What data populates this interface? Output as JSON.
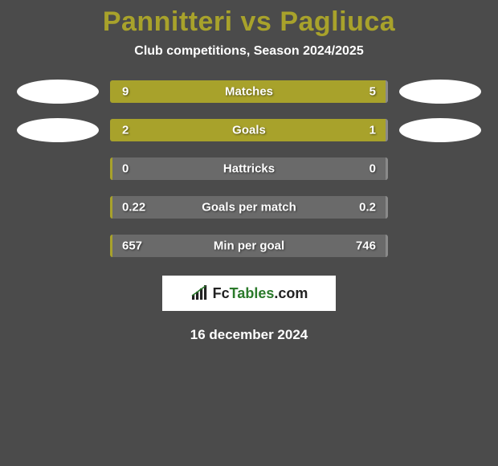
{
  "page": {
    "background_color": "#4b4b4b",
    "title_color": "#a8a22b",
    "subtitle_color": "#ffffff",
    "date_color": "#ffffff"
  },
  "title": "Pannitteri vs Pagliuca",
  "subtitle": "Club competitions, Season 2024/2025",
  "date": "16 december 2024",
  "bar_style": {
    "track_color": "#6a6a6a",
    "fill_color": "#a8a22b",
    "border_color_left": "#a8a22b",
    "border_color_right": "#8a8a8a"
  },
  "avatar_color": "#ffffff",
  "logo": {
    "text_before": "Fc",
    "text_accent": "Tables",
    "text_after": ".com"
  },
  "stats": [
    {
      "label": "Matches",
      "left_val": "9",
      "right_val": "5",
      "left_pct": 61,
      "right_pct": 39,
      "show_avatars": true
    },
    {
      "label": "Goals",
      "left_val": "2",
      "right_val": "1",
      "left_pct": 64,
      "right_pct": 36,
      "show_avatars": true
    },
    {
      "label": "Hattricks",
      "left_val": "0",
      "right_val": "0",
      "left_pct": 0,
      "right_pct": 0,
      "show_avatars": false
    },
    {
      "label": "Goals per match",
      "left_val": "0.22",
      "right_val": "0.2",
      "left_pct": 0,
      "right_pct": 0,
      "show_avatars": false
    },
    {
      "label": "Min per goal",
      "left_val": "657",
      "right_val": "746",
      "left_pct": 0,
      "right_pct": 0,
      "show_avatars": false
    }
  ]
}
